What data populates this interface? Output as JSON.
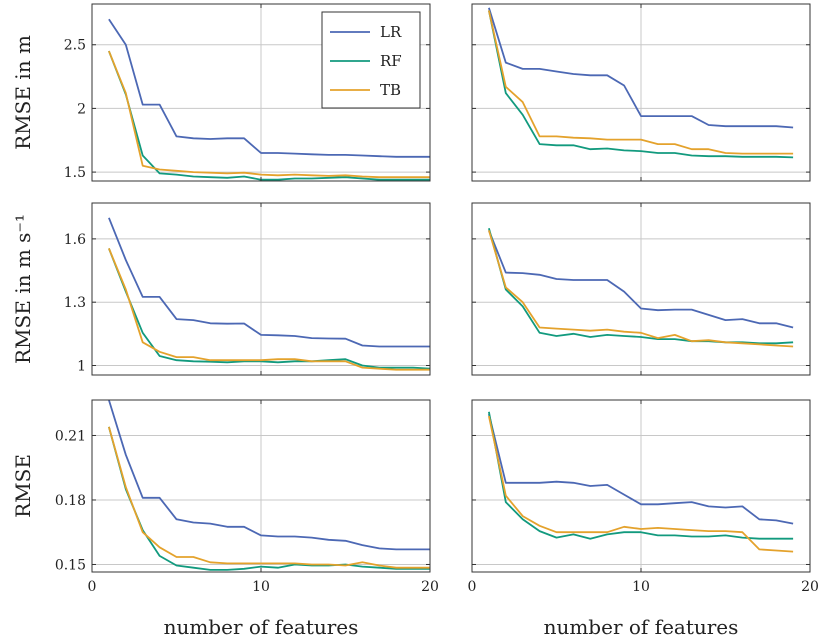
{
  "chart_data": [
    {
      "type": "line",
      "row": 0,
      "col": 0,
      "ylabel": "RMSE in m",
      "xlabel": "",
      "xlim": [
        0,
        20
      ],
      "ylim": [
        1.43,
        2.82
      ],
      "yticks": [
        1.5,
        2,
        2.5
      ],
      "ytick_labels": [
        "1.5",
        "2",
        "2.5"
      ],
      "xticks": [
        0,
        10,
        20
      ],
      "show_xtick_labels": false,
      "grid": true,
      "legend": "top-right",
      "series": [
        {
          "name": "LR",
          "color": "#4c68b4",
          "x": [
            1,
            2,
            3,
            4,
            5,
            6,
            7,
            8,
            9,
            10,
            11,
            12,
            13,
            14,
            15,
            16,
            17,
            18,
            19,
            20
          ],
          "values": [
            2.7,
            2.5,
            2.03,
            2.03,
            1.78,
            1.765,
            1.76,
            1.765,
            1.765,
            1.65,
            1.65,
            1.645,
            1.64,
            1.635,
            1.635,
            1.63,
            1.625,
            1.62,
            1.62,
            1.62
          ]
        },
        {
          "name": "RF",
          "color": "#129a7e",
          "x": [
            1,
            2,
            3,
            4,
            5,
            6,
            7,
            8,
            9,
            10,
            11,
            12,
            13,
            14,
            15,
            16,
            17,
            18,
            19,
            20
          ],
          "values": [
            2.45,
            2.11,
            1.63,
            1.49,
            1.48,
            1.465,
            1.46,
            1.455,
            1.465,
            1.44,
            1.44,
            1.45,
            1.45,
            1.455,
            1.46,
            1.45,
            1.44,
            1.44,
            1.44,
            1.44
          ]
        },
        {
          "name": "TB",
          "color": "#e4a22c",
          "x": [
            1,
            2,
            3,
            4,
            5,
            6,
            7,
            8,
            9,
            10,
            11,
            12,
            13,
            14,
            15,
            16,
            17,
            18,
            19,
            20
          ],
          "values": [
            2.45,
            2.12,
            1.55,
            1.52,
            1.51,
            1.5,
            1.495,
            1.49,
            1.495,
            1.48,
            1.475,
            1.48,
            1.475,
            1.47,
            1.475,
            1.465,
            1.46,
            1.46,
            1.46,
            1.46
          ]
        }
      ]
    },
    {
      "type": "line",
      "row": 0,
      "col": 1,
      "ylabel": "",
      "xlabel": "",
      "xlim": [
        0,
        20
      ],
      "ylim": [
        1.43,
        2.82
      ],
      "yticks": [
        1.5,
        2,
        2.5
      ],
      "show_ytick_labels": false,
      "xticks": [
        0,
        10,
        20
      ],
      "show_xtick_labels": false,
      "grid": true,
      "series": [
        {
          "name": "LR",
          "color": "#4c68b4",
          "x": [
            1,
            2,
            3,
            4,
            5,
            6,
            7,
            8,
            9,
            10,
            11,
            12,
            13,
            14,
            15,
            16,
            17,
            18,
            19
          ],
          "values": [
            2.79,
            2.36,
            2.31,
            2.31,
            2.29,
            2.27,
            2.26,
            2.26,
            2.18,
            1.94,
            1.94,
            1.94,
            1.94,
            1.87,
            1.86,
            1.86,
            1.86,
            1.86,
            1.85
          ]
        },
        {
          "name": "RF",
          "color": "#129a7e",
          "x": [
            1,
            2,
            3,
            4,
            5,
            6,
            7,
            8,
            9,
            10,
            11,
            12,
            13,
            14,
            15,
            16,
            17,
            18,
            19
          ],
          "values": [
            2.77,
            2.12,
            1.95,
            1.72,
            1.71,
            1.71,
            1.68,
            1.685,
            1.67,
            1.665,
            1.65,
            1.65,
            1.63,
            1.625,
            1.625,
            1.62,
            1.62,
            1.62,
            1.615
          ]
        },
        {
          "name": "TB",
          "color": "#e4a22c",
          "x": [
            1,
            2,
            3,
            4,
            5,
            6,
            7,
            8,
            9,
            10,
            11,
            12,
            13,
            14,
            15,
            16,
            17,
            18,
            19
          ],
          "values": [
            2.77,
            2.17,
            2.05,
            1.78,
            1.78,
            1.77,
            1.765,
            1.755,
            1.755,
            1.755,
            1.72,
            1.72,
            1.68,
            1.68,
            1.65,
            1.645,
            1.645,
            1.645,
            1.645
          ]
        }
      ]
    },
    {
      "type": "line",
      "row": 1,
      "col": 0,
      "ylabel": "RMSE in m s⁻¹",
      "xlabel": "",
      "xlim": [
        0,
        20
      ],
      "ylim": [
        0.955,
        1.77
      ],
      "yticks": [
        1.0,
        1.3,
        1.6
      ],
      "ytick_labels": [
        "1",
        "1.3",
        "1.6"
      ],
      "xticks": [
        0,
        10,
        20
      ],
      "show_xtick_labels": false,
      "grid": true,
      "series": [
        {
          "name": "LR",
          "color": "#4c68b4",
          "x": [
            1,
            2,
            3,
            4,
            5,
            6,
            7,
            8,
            9,
            10,
            11,
            12,
            13,
            14,
            15,
            16,
            17,
            18,
            19,
            20
          ],
          "values": [
            1.7,
            1.5,
            1.325,
            1.325,
            1.22,
            1.215,
            1.2,
            1.198,
            1.199,
            1.145,
            1.143,
            1.14,
            1.13,
            1.128,
            1.127,
            1.095,
            1.09,
            1.09,
            1.09,
            1.09
          ]
        },
        {
          "name": "RF",
          "color": "#129a7e",
          "x": [
            1,
            2,
            3,
            4,
            5,
            6,
            7,
            8,
            9,
            10,
            11,
            12,
            13,
            14,
            15,
            16,
            17,
            18,
            19,
            20
          ],
          "values": [
            1.555,
            1.35,
            1.155,
            1.045,
            1.025,
            1.02,
            1.018,
            1.015,
            1.02,
            1.02,
            1.015,
            1.02,
            1.02,
            1.025,
            1.03,
            1.0,
            0.99,
            0.99,
            0.99,
            0.985
          ]
        },
        {
          "name": "TB",
          "color": "#e4a22c",
          "x": [
            1,
            2,
            3,
            4,
            5,
            6,
            7,
            8,
            9,
            10,
            11,
            12,
            13,
            14,
            15,
            16,
            17,
            18,
            19,
            20
          ],
          "values": [
            1.555,
            1.36,
            1.11,
            1.065,
            1.04,
            1.04,
            1.025,
            1.025,
            1.025,
            1.025,
            1.03,
            1.03,
            1.02,
            1.02,
            1.02,
            0.99,
            0.985,
            0.98,
            0.98,
            0.98
          ]
        }
      ]
    },
    {
      "type": "line",
      "row": 1,
      "col": 1,
      "ylabel": "",
      "xlabel": "",
      "xlim": [
        0,
        20
      ],
      "ylim": [
        0.955,
        1.77
      ],
      "yticks": [
        1.0,
        1.3,
        1.6
      ],
      "show_ytick_labels": false,
      "xticks": [
        0,
        10,
        20
      ],
      "show_xtick_labels": false,
      "grid": true,
      "series": [
        {
          "name": "LR",
          "color": "#4c68b4",
          "x": [
            1,
            2,
            3,
            4,
            5,
            6,
            7,
            8,
            9,
            10,
            11,
            12,
            13,
            14,
            15,
            16,
            17,
            18,
            19
          ],
          "values": [
            1.64,
            1.44,
            1.438,
            1.43,
            1.41,
            1.405,
            1.405,
            1.405,
            1.35,
            1.27,
            1.262,
            1.265,
            1.265,
            1.24,
            1.215,
            1.22,
            1.2,
            1.2,
            1.18
          ]
        },
        {
          "name": "RF",
          "color": "#129a7e",
          "x": [
            1,
            2,
            3,
            4,
            5,
            6,
            7,
            8,
            9,
            10,
            11,
            12,
            13,
            14,
            15,
            16,
            17,
            18,
            19
          ],
          "values": [
            1.65,
            1.36,
            1.28,
            1.155,
            1.14,
            1.15,
            1.135,
            1.145,
            1.14,
            1.135,
            1.125,
            1.125,
            1.115,
            1.115,
            1.11,
            1.11,
            1.105,
            1.105,
            1.11
          ]
        },
        {
          "name": "TB",
          "color": "#e4a22c",
          "x": [
            1,
            2,
            3,
            4,
            5,
            6,
            7,
            8,
            9,
            10,
            11,
            12,
            13,
            14,
            15,
            16,
            17,
            18,
            19
          ],
          "values": [
            1.64,
            1.37,
            1.3,
            1.18,
            1.175,
            1.17,
            1.165,
            1.17,
            1.16,
            1.155,
            1.13,
            1.145,
            1.115,
            1.12,
            1.11,
            1.105,
            1.1,
            1.095,
            1.09
          ]
        }
      ]
    },
    {
      "type": "line",
      "row": 2,
      "col": 0,
      "ylabel": "RMSE",
      "xlabel": "number of features",
      "xlim": [
        0,
        20
      ],
      "ylim": [
        0.1465,
        0.2265
      ],
      "yticks": [
        0.15,
        0.18,
        0.21
      ],
      "ytick_labels": [
        "0.15",
        "0.18",
        "0.21"
      ],
      "xticks": [
        0,
        10,
        20
      ],
      "xtick_labels": [
        "0",
        "10",
        "20"
      ],
      "grid": true,
      "series": [
        {
          "name": "LR",
          "color": "#4c68b4",
          "x": [
            1,
            2,
            3,
            4,
            5,
            6,
            7,
            8,
            9,
            10,
            11,
            12,
            13,
            14,
            15,
            16,
            17,
            18,
            19,
            20
          ],
          "values": [
            0.2265,
            0.201,
            0.181,
            0.181,
            0.171,
            0.1695,
            0.169,
            0.1675,
            0.1675,
            0.1635,
            0.163,
            0.163,
            0.1625,
            0.1615,
            0.161,
            0.159,
            0.1575,
            0.157,
            0.157,
            0.157
          ]
        },
        {
          "name": "RF",
          "color": "#129a7e",
          "x": [
            1,
            2,
            3,
            4,
            5,
            6,
            7,
            8,
            9,
            10,
            11,
            12,
            13,
            14,
            15,
            16,
            17,
            18,
            19,
            20
          ],
          "values": [
            0.214,
            0.185,
            0.166,
            0.154,
            0.1495,
            0.1485,
            0.1475,
            0.1475,
            0.148,
            0.149,
            0.1485,
            0.15,
            0.1495,
            0.1495,
            0.15,
            0.149,
            0.1485,
            0.148,
            0.148,
            0.148
          ]
        },
        {
          "name": "TB",
          "color": "#e4a22c",
          "x": [
            1,
            2,
            3,
            4,
            5,
            6,
            7,
            8,
            9,
            10,
            11,
            12,
            13,
            14,
            15,
            16,
            17,
            18,
            19,
            20
          ],
          "values": [
            0.214,
            0.186,
            0.165,
            0.158,
            0.1535,
            0.1535,
            0.151,
            0.1505,
            0.1505,
            0.1505,
            0.1505,
            0.1505,
            0.15,
            0.15,
            0.1495,
            0.151,
            0.1495,
            0.1485,
            0.1485,
            0.1485
          ]
        }
      ]
    },
    {
      "type": "line",
      "row": 2,
      "col": 1,
      "ylabel": "",
      "xlabel": "number of features",
      "xlim": [
        0,
        20
      ],
      "ylim": [
        0.1465,
        0.2265
      ],
      "yticks": [
        0.15,
        0.18,
        0.21
      ],
      "show_ytick_labels": false,
      "xticks": [
        0,
        10,
        20
      ],
      "xtick_labels": [
        "0",
        "10",
        "20"
      ],
      "grid": true,
      "series": [
        {
          "name": "LR",
          "color": "#4c68b4",
          "x": [
            1,
            2,
            3,
            4,
            5,
            6,
            7,
            8,
            9,
            10,
            11,
            12,
            13,
            14,
            15,
            16,
            17,
            18,
            19
          ],
          "values": [
            0.22,
            0.188,
            0.188,
            0.188,
            0.1885,
            0.188,
            0.1865,
            0.187,
            0.1825,
            0.178,
            0.178,
            0.1785,
            0.179,
            0.177,
            0.1765,
            0.177,
            0.171,
            0.1705,
            0.169
          ]
        },
        {
          "name": "RF",
          "color": "#129a7e",
          "x": [
            1,
            2,
            3,
            4,
            5,
            6,
            7,
            8,
            9,
            10,
            11,
            12,
            13,
            14,
            15,
            16,
            17,
            18,
            19
          ],
          "values": [
            0.221,
            0.179,
            0.171,
            0.1655,
            0.1625,
            0.164,
            0.162,
            0.164,
            0.165,
            0.165,
            0.1635,
            0.1635,
            0.163,
            0.163,
            0.1635,
            0.1625,
            0.162,
            0.162,
            0.162
          ]
        },
        {
          "name": "TB",
          "color": "#e4a22c",
          "x": [
            1,
            2,
            3,
            4,
            5,
            6,
            7,
            8,
            9,
            10,
            11,
            12,
            13,
            14,
            15,
            16,
            17,
            18,
            19
          ],
          "values": [
            0.219,
            0.182,
            0.1725,
            0.168,
            0.165,
            0.165,
            0.165,
            0.165,
            0.1675,
            0.1665,
            0.167,
            0.1665,
            0.166,
            0.1655,
            0.1655,
            0.165,
            0.157,
            0.1565,
            0.156
          ]
        }
      ]
    }
  ]
}
